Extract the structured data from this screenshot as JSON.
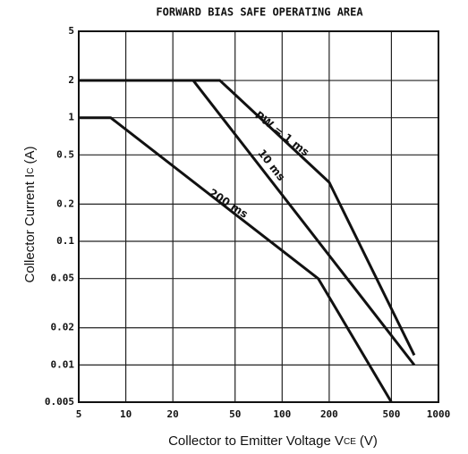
{
  "chart_data": {
    "type": "line",
    "title": "FORWARD BIAS SAFE OPERATING AREA",
    "x_label": "Collector to Emitter Voltage V",
    "x_label_sub": "CE",
    "x_label_unit": "(V)",
    "y_label": "Collector Current I",
    "y_label_sub": "C",
    "y_label_unit": "(A)",
    "log_x": true,
    "log_y": true,
    "grid": true,
    "xlim": [
      5,
      1000
    ],
    "ylim": [
      0.005,
      5
    ],
    "xticks": [
      5,
      10,
      20,
      50,
      100,
      200,
      500,
      1000
    ],
    "yticks": [
      0.005,
      0.01,
      0.02,
      0.05,
      0.1,
      0.2,
      0.5,
      1,
      2,
      5
    ],
    "series": [
      {
        "name": "PW = 1 ms",
        "color": "#111111",
        "x": [
          5,
          40,
          200,
          700
        ],
        "values": [
          2,
          2,
          0.3,
          0.012
        ]
      },
      {
        "name": "10 ms",
        "color": "#111111",
        "x": [
          5,
          27,
          700
        ],
        "values": [
          2,
          2,
          0.01
        ]
      },
      {
        "name": "200 ms",
        "color": "#111111",
        "x": [
          5,
          8,
          170,
          500
        ],
        "values": [
          1,
          1,
          0.05,
          0.005
        ]
      }
    ]
  }
}
